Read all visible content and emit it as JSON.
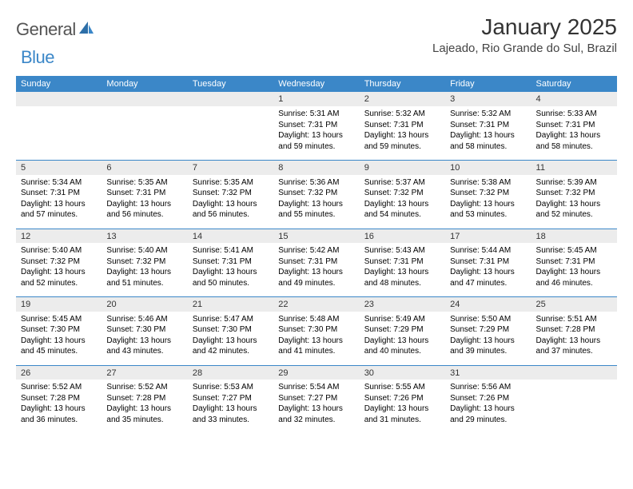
{
  "brand": {
    "text_general": "General",
    "text_blue": "Blue"
  },
  "title": "January 2025",
  "location": "Lajeado, Rio Grande do Sul, Brazil",
  "colors": {
    "header_bg": "#3b87c8",
    "header_text": "#ffffff",
    "daynum_bg": "#ececec",
    "border": "#3b87c8",
    "page_bg": "#ffffff",
    "text": "#000000",
    "logo_gray": "#545454",
    "logo_blue": "#3b87c8"
  },
  "typography": {
    "title_fontsize": 28,
    "location_fontsize": 15,
    "header_fontsize": 11,
    "daynum_fontsize": 11,
    "detail_fontsize": 10
  },
  "day_headers": [
    "Sunday",
    "Monday",
    "Tuesday",
    "Wednesday",
    "Thursday",
    "Friday",
    "Saturday"
  ],
  "weeks": [
    [
      {
        "num": "",
        "sunrise": "",
        "sunset": "",
        "daylight1": "",
        "daylight2": ""
      },
      {
        "num": "",
        "sunrise": "",
        "sunset": "",
        "daylight1": "",
        "daylight2": ""
      },
      {
        "num": "",
        "sunrise": "",
        "sunset": "",
        "daylight1": "",
        "daylight2": ""
      },
      {
        "num": "1",
        "sunrise": "Sunrise: 5:31 AM",
        "sunset": "Sunset: 7:31 PM",
        "daylight1": "Daylight: 13 hours",
        "daylight2": "and 59 minutes."
      },
      {
        "num": "2",
        "sunrise": "Sunrise: 5:32 AM",
        "sunset": "Sunset: 7:31 PM",
        "daylight1": "Daylight: 13 hours",
        "daylight2": "and 59 minutes."
      },
      {
        "num": "3",
        "sunrise": "Sunrise: 5:32 AM",
        "sunset": "Sunset: 7:31 PM",
        "daylight1": "Daylight: 13 hours",
        "daylight2": "and 58 minutes."
      },
      {
        "num": "4",
        "sunrise": "Sunrise: 5:33 AM",
        "sunset": "Sunset: 7:31 PM",
        "daylight1": "Daylight: 13 hours",
        "daylight2": "and 58 minutes."
      }
    ],
    [
      {
        "num": "5",
        "sunrise": "Sunrise: 5:34 AM",
        "sunset": "Sunset: 7:31 PM",
        "daylight1": "Daylight: 13 hours",
        "daylight2": "and 57 minutes."
      },
      {
        "num": "6",
        "sunrise": "Sunrise: 5:35 AM",
        "sunset": "Sunset: 7:31 PM",
        "daylight1": "Daylight: 13 hours",
        "daylight2": "and 56 minutes."
      },
      {
        "num": "7",
        "sunrise": "Sunrise: 5:35 AM",
        "sunset": "Sunset: 7:32 PM",
        "daylight1": "Daylight: 13 hours",
        "daylight2": "and 56 minutes."
      },
      {
        "num": "8",
        "sunrise": "Sunrise: 5:36 AM",
        "sunset": "Sunset: 7:32 PM",
        "daylight1": "Daylight: 13 hours",
        "daylight2": "and 55 minutes."
      },
      {
        "num": "9",
        "sunrise": "Sunrise: 5:37 AM",
        "sunset": "Sunset: 7:32 PM",
        "daylight1": "Daylight: 13 hours",
        "daylight2": "and 54 minutes."
      },
      {
        "num": "10",
        "sunrise": "Sunrise: 5:38 AM",
        "sunset": "Sunset: 7:32 PM",
        "daylight1": "Daylight: 13 hours",
        "daylight2": "and 53 minutes."
      },
      {
        "num": "11",
        "sunrise": "Sunrise: 5:39 AM",
        "sunset": "Sunset: 7:32 PM",
        "daylight1": "Daylight: 13 hours",
        "daylight2": "and 52 minutes."
      }
    ],
    [
      {
        "num": "12",
        "sunrise": "Sunrise: 5:40 AM",
        "sunset": "Sunset: 7:32 PM",
        "daylight1": "Daylight: 13 hours",
        "daylight2": "and 52 minutes."
      },
      {
        "num": "13",
        "sunrise": "Sunrise: 5:40 AM",
        "sunset": "Sunset: 7:32 PM",
        "daylight1": "Daylight: 13 hours",
        "daylight2": "and 51 minutes."
      },
      {
        "num": "14",
        "sunrise": "Sunrise: 5:41 AM",
        "sunset": "Sunset: 7:31 PM",
        "daylight1": "Daylight: 13 hours",
        "daylight2": "and 50 minutes."
      },
      {
        "num": "15",
        "sunrise": "Sunrise: 5:42 AM",
        "sunset": "Sunset: 7:31 PM",
        "daylight1": "Daylight: 13 hours",
        "daylight2": "and 49 minutes."
      },
      {
        "num": "16",
        "sunrise": "Sunrise: 5:43 AM",
        "sunset": "Sunset: 7:31 PM",
        "daylight1": "Daylight: 13 hours",
        "daylight2": "and 48 minutes."
      },
      {
        "num": "17",
        "sunrise": "Sunrise: 5:44 AM",
        "sunset": "Sunset: 7:31 PM",
        "daylight1": "Daylight: 13 hours",
        "daylight2": "and 47 minutes."
      },
      {
        "num": "18",
        "sunrise": "Sunrise: 5:45 AM",
        "sunset": "Sunset: 7:31 PM",
        "daylight1": "Daylight: 13 hours",
        "daylight2": "and 46 minutes."
      }
    ],
    [
      {
        "num": "19",
        "sunrise": "Sunrise: 5:45 AM",
        "sunset": "Sunset: 7:30 PM",
        "daylight1": "Daylight: 13 hours",
        "daylight2": "and 45 minutes."
      },
      {
        "num": "20",
        "sunrise": "Sunrise: 5:46 AM",
        "sunset": "Sunset: 7:30 PM",
        "daylight1": "Daylight: 13 hours",
        "daylight2": "and 43 minutes."
      },
      {
        "num": "21",
        "sunrise": "Sunrise: 5:47 AM",
        "sunset": "Sunset: 7:30 PM",
        "daylight1": "Daylight: 13 hours",
        "daylight2": "and 42 minutes."
      },
      {
        "num": "22",
        "sunrise": "Sunrise: 5:48 AM",
        "sunset": "Sunset: 7:30 PM",
        "daylight1": "Daylight: 13 hours",
        "daylight2": "and 41 minutes."
      },
      {
        "num": "23",
        "sunrise": "Sunrise: 5:49 AM",
        "sunset": "Sunset: 7:29 PM",
        "daylight1": "Daylight: 13 hours",
        "daylight2": "and 40 minutes."
      },
      {
        "num": "24",
        "sunrise": "Sunrise: 5:50 AM",
        "sunset": "Sunset: 7:29 PM",
        "daylight1": "Daylight: 13 hours",
        "daylight2": "and 39 minutes."
      },
      {
        "num": "25",
        "sunrise": "Sunrise: 5:51 AM",
        "sunset": "Sunset: 7:28 PM",
        "daylight1": "Daylight: 13 hours",
        "daylight2": "and 37 minutes."
      }
    ],
    [
      {
        "num": "26",
        "sunrise": "Sunrise: 5:52 AM",
        "sunset": "Sunset: 7:28 PM",
        "daylight1": "Daylight: 13 hours",
        "daylight2": "and 36 minutes."
      },
      {
        "num": "27",
        "sunrise": "Sunrise: 5:52 AM",
        "sunset": "Sunset: 7:28 PM",
        "daylight1": "Daylight: 13 hours",
        "daylight2": "and 35 minutes."
      },
      {
        "num": "28",
        "sunrise": "Sunrise: 5:53 AM",
        "sunset": "Sunset: 7:27 PM",
        "daylight1": "Daylight: 13 hours",
        "daylight2": "and 33 minutes."
      },
      {
        "num": "29",
        "sunrise": "Sunrise: 5:54 AM",
        "sunset": "Sunset: 7:27 PM",
        "daylight1": "Daylight: 13 hours",
        "daylight2": "and 32 minutes."
      },
      {
        "num": "30",
        "sunrise": "Sunrise: 5:55 AM",
        "sunset": "Sunset: 7:26 PM",
        "daylight1": "Daylight: 13 hours",
        "daylight2": "and 31 minutes."
      },
      {
        "num": "31",
        "sunrise": "Sunrise: 5:56 AM",
        "sunset": "Sunset: 7:26 PM",
        "daylight1": "Daylight: 13 hours",
        "daylight2": "and 29 minutes."
      },
      {
        "num": "",
        "sunrise": "",
        "sunset": "",
        "daylight1": "",
        "daylight2": ""
      }
    ]
  ]
}
